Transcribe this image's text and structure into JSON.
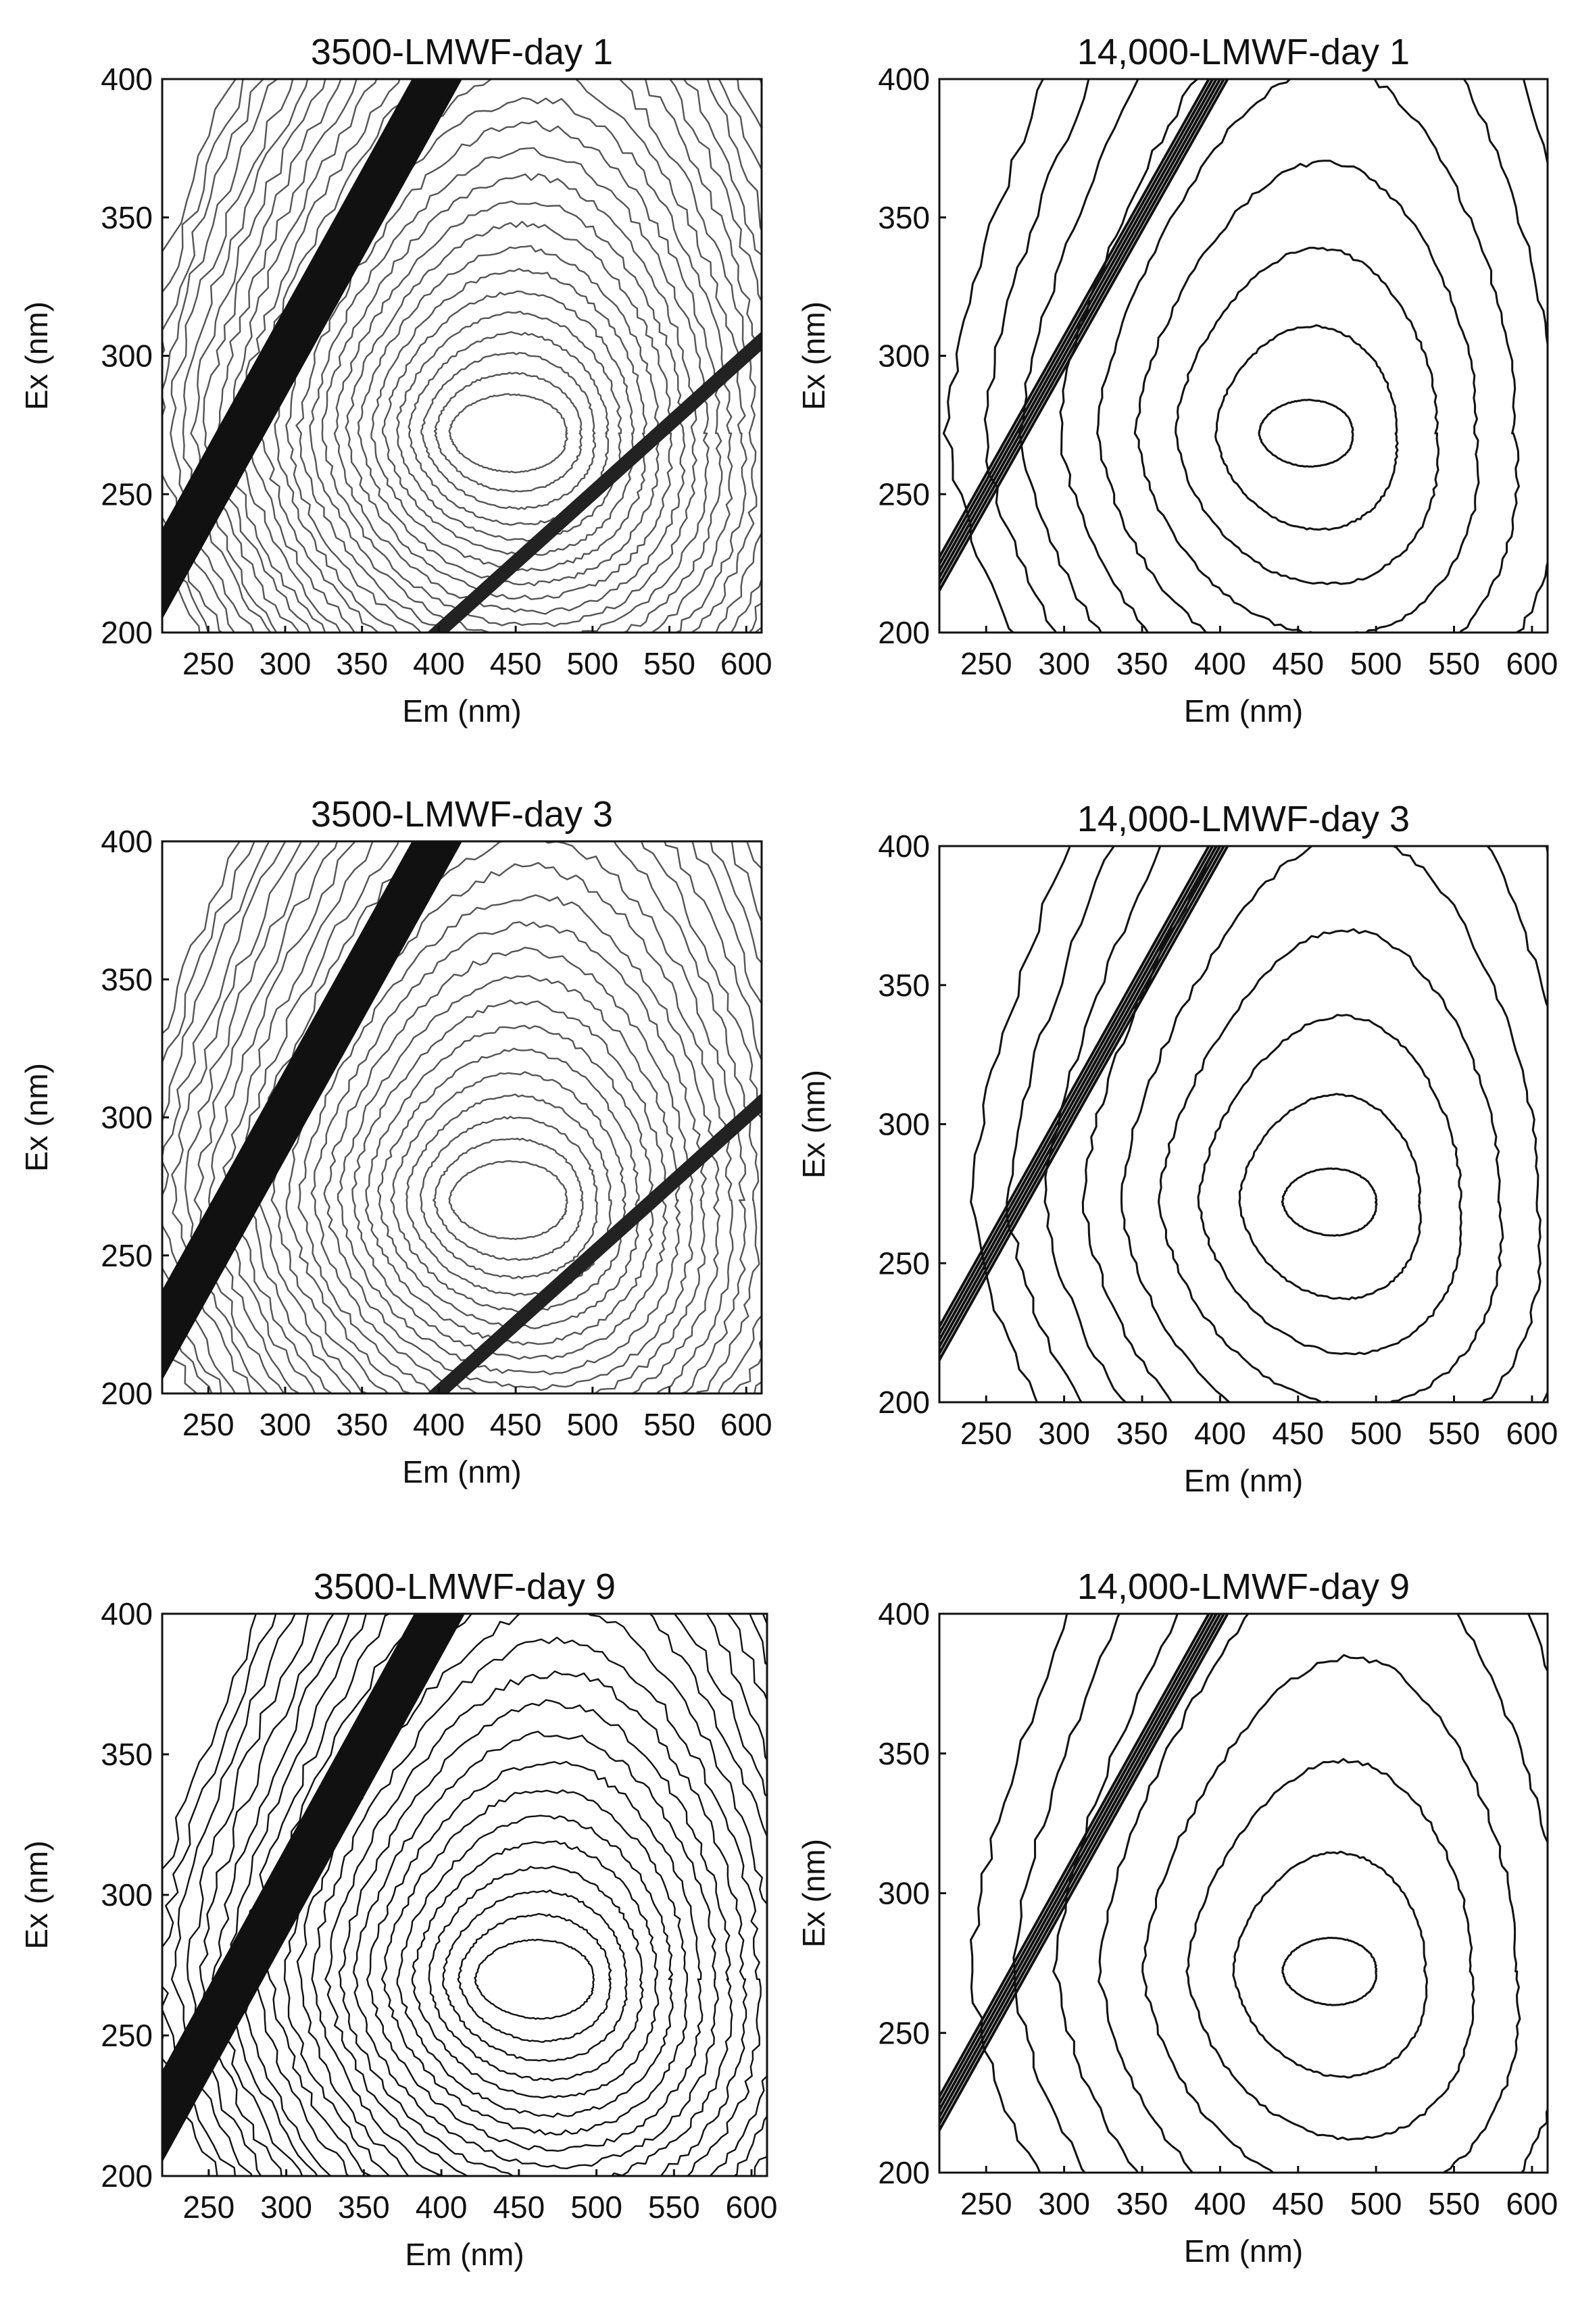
{
  "chart_data": [
    {
      "type": "contour",
      "title": "3500-LMWF-day 1",
      "xlabel": "Em (nm)",
      "ylabel": "Ex (nm)",
      "xticks": [
        "250",
        "300",
        "350",
        "400",
        "450",
        "500",
        "550",
        "600"
      ],
      "yticks": [
        "200",
        "250",
        "300",
        "350",
        "400"
      ],
      "xlim": [
        220,
        610
      ],
      "ylim": [
        200,
        400
      ],
      "peak": {
        "em": 445,
        "ex": 272
      },
      "contour_levels": 28,
      "line_color": "#555555",
      "rayleigh_first_order": "Em = Ex",
      "rayleigh_second_order": "Em = 2 Ex",
      "second_order_visible": true
    },
    {
      "type": "contour",
      "title": "14,000-LMWF-day 1",
      "xlabel": "Em (nm)",
      "ylabel": "Ex (nm)",
      "xticks": [
        "250",
        "300",
        "350",
        "400",
        "450",
        "500",
        "550",
        "600"
      ],
      "yticks": [
        "200",
        "250",
        "300",
        "350",
        "400"
      ],
      "xlim": [
        220,
        610
      ],
      "ylim": [
        200,
        400
      ],
      "peak": {
        "em": 455,
        "ex": 272
      },
      "contour_levels": 9,
      "line_color": "#111111",
      "rayleigh_first_order": "Em = Ex",
      "second_order_visible": false
    },
    {
      "type": "contour",
      "title": "3500-LMWF-day 3",
      "xlabel": "Em (nm)",
      "ylabel": "Ex (nm)",
      "xticks": [
        "250",
        "300",
        "350",
        "400",
        "450",
        "500",
        "550",
        "600"
      ],
      "yticks": [
        "200",
        "250",
        "300",
        "350",
        "400"
      ],
      "xlim": [
        220,
        610
      ],
      "ylim": [
        200,
        400
      ],
      "peak": {
        "em": 445,
        "ex": 270
      },
      "contour_levels": 26,
      "line_color": "#555555",
      "rayleigh_first_order": "Em = Ex",
      "rayleigh_second_order": "Em = 2 Ex",
      "second_order_visible": true
    },
    {
      "type": "contour",
      "title": "14,000-LMWF-day 3",
      "xlabel": "Em (nm)",
      "ylabel": "Ex (nm)",
      "xticks": [
        "250",
        "300",
        "350",
        "400",
        "450",
        "500",
        "550",
        "600"
      ],
      "yticks": [
        "200",
        "250",
        "300",
        "350",
        "400"
      ],
      "xlim": [
        220,
        610
      ],
      "ylim": [
        200,
        400
      ],
      "peak": {
        "em": 470,
        "ex": 272
      },
      "contour_levels": 9,
      "line_color": "#111111",
      "rayleigh_first_order": "Em = Ex",
      "second_order_visible": false
    },
    {
      "type": "contour",
      "title": "3500-LMWF-day 9",
      "xlabel": "Em (nm)",
      "ylabel": "Ex (nm)",
      "xticks": [
        "250",
        "300",
        "350",
        "400",
        "450",
        "500",
        "550",
        "600"
      ],
      "yticks": [
        "200",
        "250",
        "300",
        "350",
        "400"
      ],
      "xlim": [
        220,
        610
      ],
      "ylim": [
        200,
        400
      ],
      "peak": {
        "em": 460,
        "ex": 270
      },
      "contour_levels": 24,
      "line_color": "#111111",
      "rayleigh_first_order": "Em = Ex",
      "second_order_visible": false
    },
    {
      "type": "contour",
      "title": "14,000-LMWF-day 9",
      "xlabel": "Em (nm)",
      "ylabel": "Ex (nm)",
      "xticks": [
        "250",
        "300",
        "350",
        "400",
        "450",
        "500",
        "550",
        "600"
      ],
      "yticks": [
        "200",
        "250",
        "300",
        "350",
        "400"
      ],
      "xlim": [
        220,
        610
      ],
      "ylim": [
        200,
        400
      ],
      "peak": {
        "em": 470,
        "ex": 272
      },
      "contour_levels": 8,
      "line_color": "#111111",
      "rayleigh_first_order": "Em = Ex",
      "second_order_visible": false
    }
  ]
}
